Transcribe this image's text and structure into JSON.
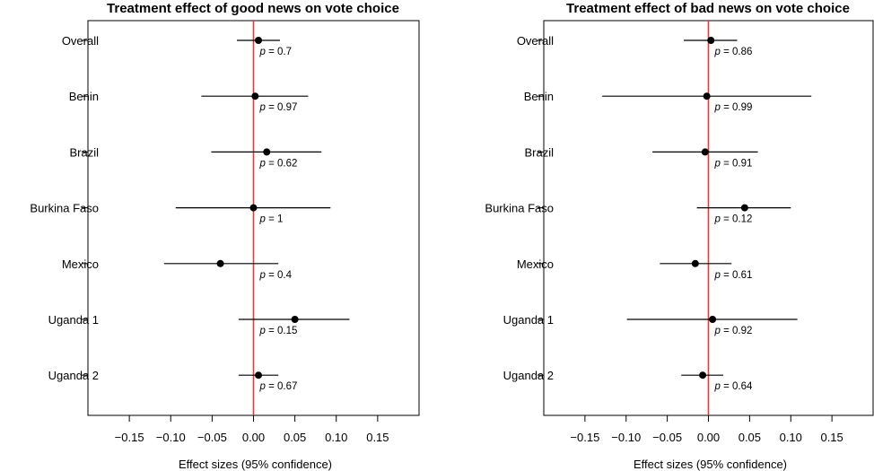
{
  "chart_data": [
    {
      "type": "forest",
      "title": "Treatment effect of good news on vote choice",
      "xlabel": "Effect sizes (95% confidence)",
      "xlim": [
        -0.2,
        0.2
      ],
      "xticks": [
        -0.15,
        -0.1,
        -0.05,
        0.0,
        0.05,
        0.1,
        0.15
      ],
      "xtick_labels": [
        "−0.15",
        "−0.10",
        "−0.05",
        "0.00",
        "0.05",
        "0.10",
        "0.15"
      ],
      "reference_line": 0,
      "p_prefix": "p",
      "categories": [
        "Overall",
        "Benin",
        "Brazil",
        "Burkina Faso",
        "Mexico",
        "Uganda 1",
        "Uganda 2"
      ],
      "estimates": [
        0.006,
        0.002,
        0.016,
        0.0,
        -0.04,
        0.05,
        0.006
      ],
      "ci_lower": [
        -0.02,
        -0.063,
        -0.051,
        -0.094,
        -0.108,
        -0.018,
        -0.018
      ],
      "ci_upper": [
        0.032,
        0.066,
        0.082,
        0.093,
        0.03,
        0.116,
        0.03
      ],
      "p_labels": [
        "= 0.7",
        "= 0.97",
        "= 0.62",
        "= 1",
        "= 0.4",
        "= 0.15",
        "= 0.67"
      ]
    },
    {
      "type": "forest",
      "title": "Treatment effect of bad news on vote choice",
      "xlabel": "Effect sizes (95% confidence)",
      "xlim": [
        -0.2,
        0.2
      ],
      "xticks": [
        -0.15,
        -0.1,
        -0.05,
        0.0,
        0.05,
        0.1,
        0.15
      ],
      "xtick_labels": [
        "−0.15",
        "−0.10",
        "−0.05",
        "0.00",
        "0.05",
        "0.10",
        "0.15"
      ],
      "reference_line": 0,
      "p_prefix": "p",
      "categories": [
        "Overall",
        "Benin",
        "Brazil",
        "Burkina Faso",
        "Mexico",
        "Uganda 1",
        "Uganda 2"
      ],
      "estimates": [
        0.003,
        -0.002,
        -0.004,
        0.044,
        -0.016,
        0.005,
        -0.007
      ],
      "ci_lower": [
        -0.03,
        -0.129,
        -0.068,
        -0.014,
        -0.059,
        -0.099,
        -0.033
      ],
      "ci_upper": [
        0.035,
        0.125,
        0.06,
        0.1,
        0.028,
        0.108,
        0.018
      ],
      "p_labels": [
        "= 0.86",
        "= 0.99",
        "= 0.91",
        "= 0.12",
        "= 0.61",
        "= 0.92",
        "= 0.64"
      ]
    }
  ],
  "colors": {
    "reference_line": "#e8393f",
    "marks": "#000000",
    "frame": "#000000"
  }
}
